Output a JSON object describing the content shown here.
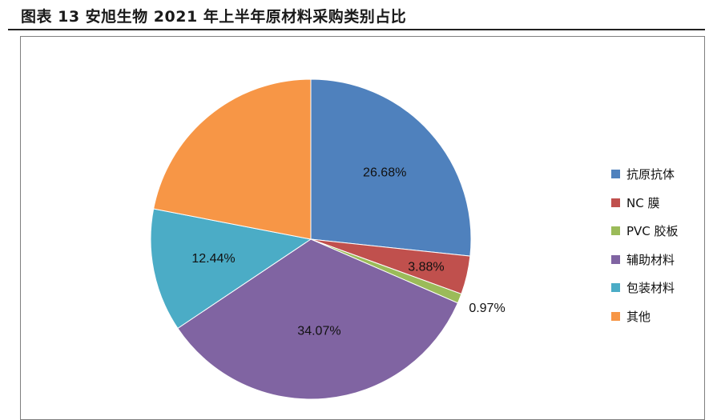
{
  "figure": {
    "title": "图表 13  安旭生物 2021 年上半年原材料采购类别占比"
  },
  "chart_data": {
    "type": "pie",
    "title": "",
    "legend_position": "right",
    "start_angle": "12 o'clock",
    "direction": "clockwise",
    "slices": [
      {
        "name": "抗原抗体",
        "value": 26.68,
        "label": "26.68%",
        "color": "#4F81BD"
      },
      {
        "name": "NC 膜",
        "value": 3.88,
        "label": "3.88%",
        "color": "#C0504D"
      },
      {
        "name": "PVC 胶板",
        "value": 0.97,
        "label": "0.97%",
        "color": "#9BBB59"
      },
      {
        "name": "辅助材料",
        "value": 34.07,
        "label": "34.07%",
        "color": "#8064A2"
      },
      {
        "name": "包装材料",
        "value": 12.44,
        "label": "12.44%",
        "color": "#4BACC6"
      },
      {
        "name": "其他",
        "value": 21.96,
        "label": "",
        "color": "#F79646"
      }
    ]
  }
}
